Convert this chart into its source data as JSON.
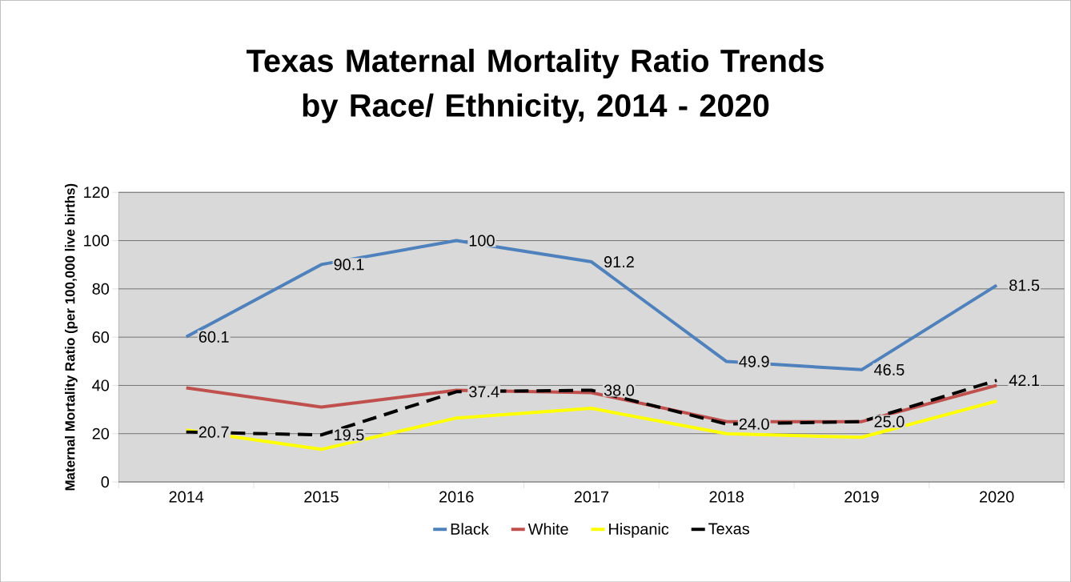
{
  "chart_data": {
    "type": "line",
    "title": "Texas Maternal Mortality Ratio Trends by Race/ Ethnicity, 2014 - 2020",
    "ylabel": "Maternal Mortality Ratio (per 100,000 live births)",
    "categories": [
      "2014",
      "2015",
      "2016",
      "2017",
      "2018",
      "2019",
      "2020"
    ],
    "series": [
      {
        "name": "Black",
        "color": "#4f81bd",
        "values": [
          60.1,
          90.1,
          100,
          91.2,
          49.9,
          46.5,
          81.5
        ],
        "value_labels": [
          "60.1",
          "90.1",
          "100",
          "91.2",
          "49.9",
          "46.5",
          "81.5"
        ]
      },
      {
        "name": "White",
        "color": "#c0504d",
        "values": [
          39,
          31,
          38,
          37,
          25,
          25,
          40
        ]
      },
      {
        "name": "Hispanic",
        "color": "#ffff00",
        "values": [
          21.5,
          13.5,
          26.5,
          30.5,
          20,
          18.5,
          33.5
        ]
      },
      {
        "name": "Texas",
        "color": "#000000",
        "line_style": "dashed",
        "values": [
          20.7,
          19.5,
          37.4,
          38.0,
          24.0,
          25.0,
          42.1
        ],
        "value_labels": [
          "20.7",
          "19.5",
          "37.4",
          "38.0",
          "24.0",
          "25.0",
          "42.1"
        ]
      }
    ],
    "ylim": [
      0,
      120
    ],
    "yticks": [
      0,
      20,
      40,
      60,
      80,
      100,
      120
    ],
    "grid": "y",
    "legend": "bottom",
    "marker": "none"
  }
}
